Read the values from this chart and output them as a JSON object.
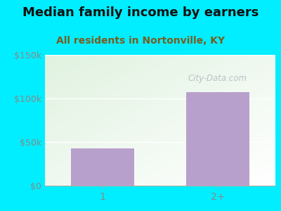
{
  "title": "Median family income by earners",
  "subtitle": "All residents in Nortonville, KY",
  "categories": [
    "1",
    "2+"
  ],
  "values": [
    43000,
    107000
  ],
  "bar_color": "#b8a0cc",
  "ylim": [
    0,
    150000
  ],
  "yticks": [
    0,
    50000,
    100000,
    150000
  ],
  "ytick_labels": [
    "$0",
    "$50k",
    "$100k",
    "$150k"
  ],
  "title_fontsize": 13,
  "subtitle_fontsize": 10,
  "title_color": "#111111",
  "subtitle_color": "#7a5c1e",
  "outer_bg_color": "#00eeff",
  "tick_label_color": "#888888",
  "watermark": "City-Data.com",
  "watermark_color": "#b0b8c0",
  "grid_color": "#dddddd"
}
